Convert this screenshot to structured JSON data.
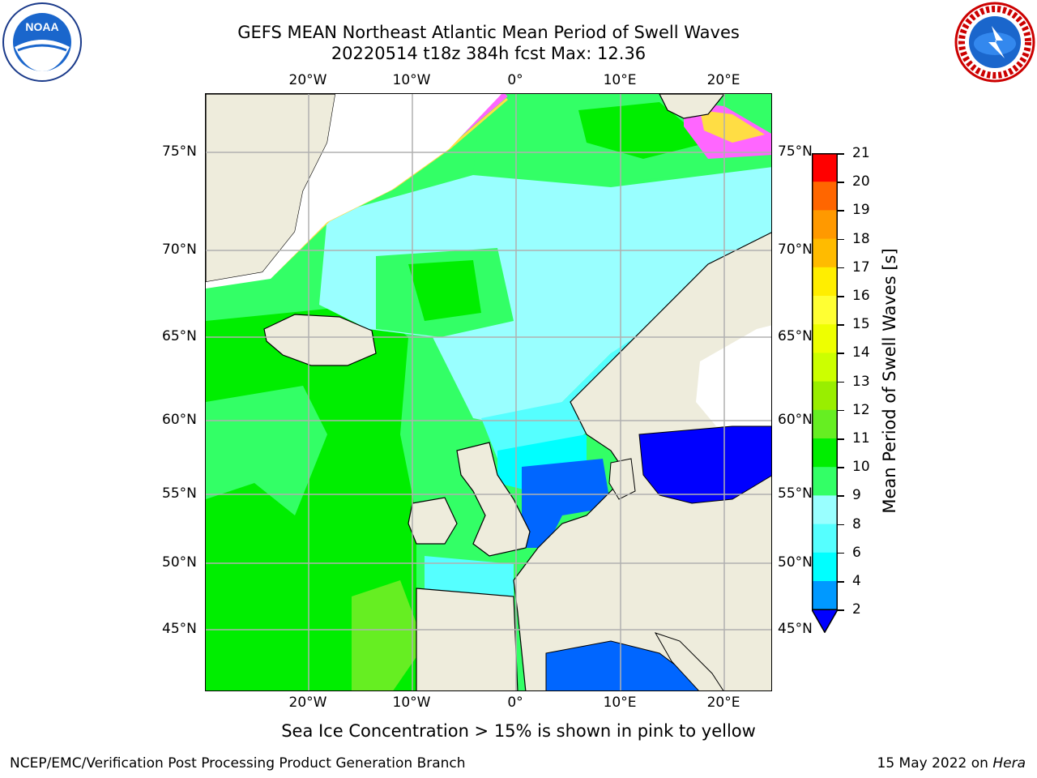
{
  "title_line1": "GEFS MEAN Northeast Atlantic Mean Period of Swell Waves",
  "title_line2": "20220514 t18z 384h fcst   Max: 12.36",
  "logos": {
    "left": "NOAA",
    "right": "NATIONAL WEATHER SERVICE"
  },
  "map": {
    "longitude_labels": [
      "20°W",
      "10°W",
      "0°",
      "10°E",
      "20°E"
    ],
    "latitude_labels": [
      "75°N",
      "70°N",
      "65°N",
      "60°N",
      "55°N",
      "50°N",
      "45°N"
    ],
    "colors": {
      "land": "#eeecdc",
      "ice_pink": "#ff66ff",
      "ice_yellow": "#ffdd44",
      "grid": "#b0b0b0"
    }
  },
  "colorbar": {
    "label": "Mean Period of Swell Waves [s]",
    "ticks": [
      "21",
      "20",
      "19",
      "18",
      "17",
      "16",
      "15",
      "14",
      "13",
      "12",
      "11",
      "10",
      "9",
      "8",
      "6",
      "4",
      "2"
    ],
    "colors": [
      "#ff0000",
      "#ff3300",
      "#ff6600",
      "#ff9900",
      "#ffbb00",
      "#ffee00",
      "#ffff33",
      "#eeff00",
      "#ccff00",
      "#99ee00",
      "#66ee22",
      "#00ee00",
      "#33ff66",
      "#99ffff",
      "#55ffff",
      "#00ffff",
      "#0099ff",
      "#0066ff",
      "#0000ff"
    ]
  },
  "ice_note": "Sea Ice Concentration > 15% is shown in pink to yellow",
  "footer": {
    "left": "NCEP/EMC/Verification Post Processing Product Generation Branch",
    "date": "15 May 2022 on ",
    "host": "Hera"
  }
}
